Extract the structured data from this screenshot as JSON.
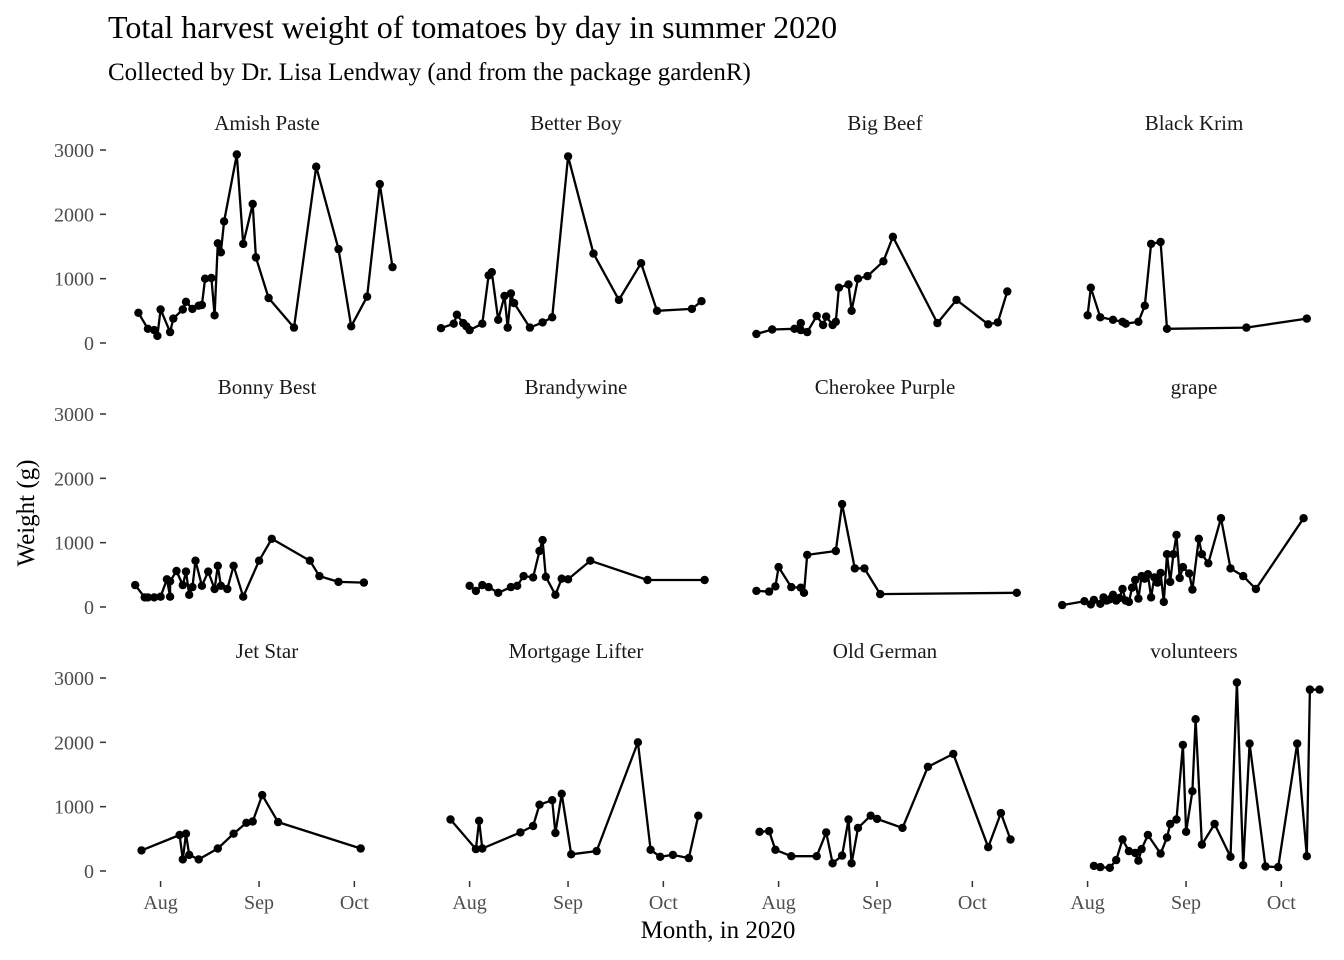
{
  "chart_data": {
    "type": "line",
    "title": "Total harvest weight of tomatoes by day in summer 2020",
    "subtitle": "Collected by Dr. Lisa Lendway (and from the package gardenR)",
    "xlabel": "Month, in 2020",
    "ylabel": "Weight (g)",
    "ylim": [
      0,
      3000
    ],
    "yticks": [
      0,
      1000,
      2000,
      3000
    ],
    "xlim": [
      "2020-07-23",
      "2020-10-16"
    ],
    "xticks": [
      {
        "label": "Aug",
        "date": "2020-08-01"
      },
      {
        "label": "Sep",
        "date": "2020-09-01"
      },
      {
        "label": "Oct",
        "date": "2020-10-01"
      }
    ],
    "grid": false,
    "facets": [
      {
        "name": "Amish Paste",
        "x": [
          "2020-07-25",
          "2020-07-28",
          "2020-07-30",
          "2020-07-31",
          "2020-08-01",
          "2020-08-04",
          "2020-08-05",
          "2020-08-08",
          "2020-08-09",
          "2020-08-11",
          "2020-08-13",
          "2020-08-14",
          "2020-08-15",
          "2020-08-17",
          "2020-08-18",
          "2020-08-19",
          "2020-08-20",
          "2020-08-21",
          "2020-08-25",
          "2020-08-27",
          "2020-08-30",
          "2020-08-31",
          "2020-09-04",
          "2020-09-12",
          "2020-09-19",
          "2020-09-26",
          "2020-09-30",
          "2020-10-05",
          "2020-10-09",
          "2020-10-13"
        ],
        "values": [
          470,
          220,
          200,
          110,
          520,
          170,
          380,
          520,
          640,
          530,
          580,
          590,
          1000,
          1010,
          430,
          1550,
          1410,
          1890,
          2930,
          1540,
          2160,
          1330,
          700,
          240,
          2740,
          1460,
          260,
          720,
          2470,
          1180
        ]
      },
      {
        "name": "Better Boy",
        "x": [
          "2020-07-23",
          "2020-07-27",
          "2020-07-28",
          "2020-07-30",
          "2020-07-31",
          "2020-08-01",
          "2020-08-05",
          "2020-08-07",
          "2020-08-08",
          "2020-08-10",
          "2020-08-12",
          "2020-08-13",
          "2020-08-14",
          "2020-08-15",
          "2020-08-20",
          "2020-08-24",
          "2020-08-27",
          "2020-09-01",
          "2020-09-09",
          "2020-09-17",
          "2020-09-24",
          "2020-09-29",
          "2020-10-10",
          "2020-10-13"
        ],
        "values": [
          230,
          300,
          440,
          310,
          260,
          200,
          300,
          1050,
          1100,
          360,
          730,
          240,
          770,
          620,
          240,
          320,
          400,
          2900,
          1390,
          670,
          1240,
          500,
          530,
          650
        ]
      },
      {
        "name": "Big Beef",
        "x": [
          "2020-07-25",
          "2020-07-30",
          "2020-08-06",
          "2020-08-08",
          "2020-08-08",
          "2020-08-10",
          "2020-08-13",
          "2020-08-15",
          "2020-08-16",
          "2020-08-18",
          "2020-08-19",
          "2020-08-20",
          "2020-08-23",
          "2020-08-24",
          "2020-08-26",
          "2020-08-29",
          "2020-09-03",
          "2020-09-06",
          "2020-09-20",
          "2020-09-26",
          "2020-10-06",
          "2020-10-09",
          "2020-10-12"
        ],
        "values": [
          140,
          210,
          220,
          310,
          200,
          170,
          420,
          280,
          410,
          280,
          330,
          860,
          910,
          500,
          1000,
          1040,
          1270,
          1650,
          310,
          670,
          290,
          320,
          800
        ]
      },
      {
        "name": "Black Krim",
        "x": [
          "2020-08-01",
          "2020-08-02",
          "2020-08-05",
          "2020-08-09",
          "2020-08-12",
          "2020-08-13",
          "2020-08-17",
          "2020-08-19",
          "2020-08-21",
          "2020-08-24",
          "2020-08-26",
          "2020-09-20",
          "2020-10-09"
        ],
        "values": [
          430,
          860,
          400,
          360,
          330,
          300,
          330,
          580,
          1540,
          1570,
          220,
          240,
          380
        ]
      },
      {
        "name": "Bonny Best",
        "x": [
          "2020-07-24",
          "2020-07-27",
          "2020-07-28",
          "2020-07-30",
          "2020-08-01",
          "2020-08-03",
          "2020-08-04",
          "2020-08-04",
          "2020-08-06",
          "2020-08-08",
          "2020-08-09",
          "2020-08-10",
          "2020-08-11",
          "2020-08-12",
          "2020-08-14",
          "2020-08-16",
          "2020-08-18",
          "2020-08-19",
          "2020-08-20",
          "2020-08-22",
          "2020-08-24",
          "2020-08-27",
          "2020-09-01",
          "2020-09-05",
          "2020-09-17",
          "2020-09-20",
          "2020-09-26",
          "2020-10-04"
        ],
        "values": [
          340,
          150,
          150,
          150,
          160,
          430,
          160,
          400,
          560,
          340,
          550,
          190,
          310,
          720,
          330,
          550,
          280,
          640,
          330,
          280,
          640,
          160,
          720,
          1060,
          720,
          480,
          390,
          380
        ]
      },
      {
        "name": "Brandywine",
        "x": [
          "2020-08-01",
          "2020-08-03",
          "2020-08-05",
          "2020-08-07",
          "2020-08-10",
          "2020-08-14",
          "2020-08-16",
          "2020-08-18",
          "2020-08-21",
          "2020-08-23",
          "2020-08-24",
          "2020-08-25",
          "2020-08-28",
          "2020-08-30",
          "2020-09-01",
          "2020-09-08",
          "2020-09-26",
          "2020-10-14"
        ],
        "values": [
          330,
          250,
          340,
          310,
          220,
          310,
          330,
          480,
          460,
          870,
          1040,
          470,
          190,
          440,
          430,
          720,
          420,
          420
        ]
      },
      {
        "name": "Cherokee Purple",
        "x": [
          "2020-07-25",
          "2020-07-29",
          "2020-07-31",
          "2020-08-01",
          "2020-08-05",
          "2020-08-08",
          "2020-08-09",
          "2020-08-10",
          "2020-08-19",
          "2020-08-21",
          "2020-08-25",
          "2020-08-28",
          "2020-09-02",
          "2020-10-15"
        ],
        "values": [
          250,
          240,
          320,
          620,
          310,
          300,
          220,
          810,
          870,
          1600,
          600,
          600,
          200,
          220
        ]
      },
      {
        "name": "grape",
        "x": [
          "2020-07-24",
          "2020-07-31",
          "2020-08-02",
          "2020-08-03",
          "2020-08-05",
          "2020-08-06",
          "2020-08-07",
          "2020-08-08",
          "2020-08-09",
          "2020-08-10",
          "2020-08-11",
          "2020-08-12",
          "2020-08-13",
          "2020-08-14",
          "2020-08-15",
          "2020-08-16",
          "2020-08-17",
          "2020-08-18",
          "2020-08-19",
          "2020-08-20",
          "2020-08-21",
          "2020-08-22",
          "2020-08-23",
          "2020-08-24",
          "2020-08-25",
          "2020-08-26",
          "2020-08-27",
          "2020-08-28",
          "2020-08-29",
          "2020-08-30",
          "2020-08-31",
          "2020-09-02",
          "2020-09-03",
          "2020-09-05",
          "2020-09-06",
          "2020-09-08",
          "2020-09-12",
          "2020-09-15",
          "2020-09-19",
          "2020-09-23",
          "2020-10-08"
        ],
        "values": [
          30,
          90,
          40,
          110,
          50,
          150,
          100,
          120,
          190,
          100,
          140,
          280,
          100,
          80,
          300,
          420,
          130,
          480,
          440,
          510,
          150,
          460,
          380,
          530,
          80,
          820,
          390,
          820,
          1120,
          450,
          620,
          520,
          270,
          1060,
          820,
          680,
          1380,
          600,
          480,
          280,
          1380
        ]
      },
      {
        "name": "Jet Star",
        "x": [
          "2020-07-26",
          "2020-08-07",
          "2020-08-08",
          "2020-08-09",
          "2020-08-10",
          "2020-08-13",
          "2020-08-19",
          "2020-08-24",
          "2020-08-28",
          "2020-08-30",
          "2020-09-02",
          "2020-09-07",
          "2020-10-03"
        ],
        "values": [
          320,
          560,
          180,
          580,
          250,
          180,
          350,
          580,
          750,
          770,
          1180,
          760,
          350
        ]
      },
      {
        "name": "Mortgage Lifter",
        "x": [
          "2020-07-26",
          "2020-08-03",
          "2020-08-04",
          "2020-08-05",
          "2020-08-17",
          "2020-08-21",
          "2020-08-23",
          "2020-08-27",
          "2020-08-28",
          "2020-08-30",
          "2020-09-02",
          "2020-09-10",
          "2020-09-23",
          "2020-09-27",
          "2020-09-30",
          "2020-10-04",
          "2020-10-09",
          "2020-10-12"
        ],
        "values": [
          800,
          340,
          780,
          350,
          600,
          700,
          1030,
          1100,
          590,
          1200,
          260,
          310,
          2000,
          330,
          220,
          250,
          200,
          860
        ]
      },
      {
        "name": "Old German",
        "x": [
          "2020-07-26",
          "2020-07-29",
          "2020-07-31",
          "2020-08-05",
          "2020-08-13",
          "2020-08-16",
          "2020-08-18",
          "2020-08-21",
          "2020-08-23",
          "2020-08-24",
          "2020-08-26",
          "2020-08-30",
          "2020-09-01",
          "2020-09-09",
          "2020-09-17",
          "2020-09-25",
          "2020-10-06",
          "2020-10-10",
          "2020-10-13"
        ],
        "values": [
          610,
          620,
          330,
          230,
          230,
          600,
          120,
          240,
          800,
          120,
          670,
          860,
          810,
          670,
          1620,
          1820,
          370,
          900,
          490
        ]
      },
      {
        "name": "volunteers",
        "x": [
          "2020-08-03",
          "2020-08-05",
          "2020-08-08",
          "2020-08-10",
          "2020-08-12",
          "2020-08-14",
          "2020-08-16",
          "2020-08-17",
          "2020-08-18",
          "2020-08-20",
          "2020-08-24",
          "2020-08-26",
          "2020-08-27",
          "2020-08-29",
          "2020-08-31",
          "2020-09-01",
          "2020-09-03",
          "2020-09-04",
          "2020-09-06",
          "2020-09-10",
          "2020-09-15",
          "2020-09-17",
          "2020-09-19",
          "2020-09-21",
          "2020-09-26",
          "2020-09-30",
          "2020-10-06",
          "2020-10-09",
          "2020-10-10",
          "2020-10-13"
        ],
        "values": [
          80,
          60,
          50,
          170,
          490,
          310,
          280,
          160,
          340,
          560,
          270,
          520,
          730,
          800,
          1960,
          610,
          1240,
          2360,
          410,
          730,
          220,
          2930,
          90,
          1980,
          70,
          60,
          1980,
          230,
          2820,
          2820
        ]
      }
    ]
  }
}
